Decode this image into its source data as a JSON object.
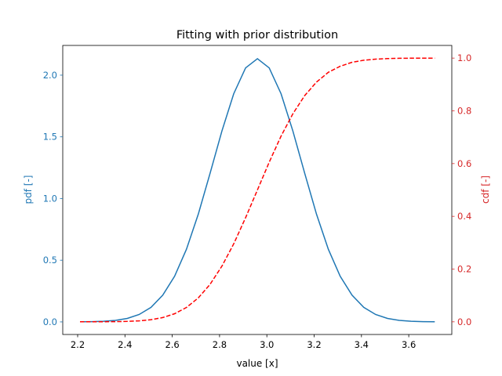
{
  "chart_data": {
    "type": "line",
    "title": "Fitting with prior distribution",
    "xlabel": "value [x]",
    "ylabel_left": "pdf [-]",
    "ylabel_right": "cdf [-]",
    "xlim": [
      2.137,
      3.782
    ],
    "ylim_left": [
      -0.102,
      2.241
    ],
    "ylim_right": [
      -0.048,
      1.048
    ],
    "x_ticks": [
      "2.2",
      "2.4",
      "2.6",
      "2.8",
      "3.0",
      "3.2",
      "3.4",
      "3.6"
    ],
    "y_left_ticks": [
      "0.0",
      "0.5",
      "1.0",
      "1.5",
      "2.0"
    ],
    "y_right_ticks": [
      "0.0",
      "0.2",
      "0.4",
      "0.6",
      "0.8",
      "1.0"
    ],
    "grid": false,
    "colors": {
      "pdf": "#1f77b4",
      "cdf": "#ff0000",
      "left_axis": "#1f77b4",
      "right_axis": "#d62728"
    },
    "x": [
      2.21,
      2.26,
      2.31,
      2.36,
      2.41,
      2.46,
      2.51,
      2.56,
      2.61,
      2.66,
      2.71,
      2.76,
      2.81,
      2.86,
      2.91,
      2.96,
      3.01,
      3.06,
      3.11,
      3.16,
      3.21,
      3.26,
      3.31,
      3.36,
      3.41,
      3.46,
      3.51,
      3.56,
      3.61,
      3.66,
      3.71
    ],
    "series": [
      {
        "axis": "left",
        "style": "solid",
        "values": [
          0.0007,
          0.0019,
          0.0051,
          0.0124,
          0.0282,
          0.0598,
          0.118,
          0.2166,
          0.37,
          0.589,
          0.873,
          1.204,
          1.547,
          1.85,
          2.059,
          2.134,
          2.059,
          1.85,
          1.547,
          1.204,
          0.873,
          0.589,
          0.37,
          0.2166,
          0.118,
          0.0598,
          0.0282,
          0.0124,
          0.0051,
          0.0019,
          0.0007
        ]
      },
      {
        "axis": "right",
        "style": "dashed",
        "values": [
          3e-05,
          0.0001,
          0.0003,
          0.0007,
          0.0016,
          0.0037,
          0.0081,
          0.0162,
          0.0306,
          0.0544,
          0.0906,
          0.142,
          0.211,
          0.296,
          0.395,
          0.5,
          0.605,
          0.704,
          0.789,
          0.858,
          0.909,
          0.946,
          0.969,
          0.984,
          0.992,
          0.996,
          0.998,
          0.9993,
          0.9997,
          0.9999,
          1.0
        ]
      }
    ]
  }
}
